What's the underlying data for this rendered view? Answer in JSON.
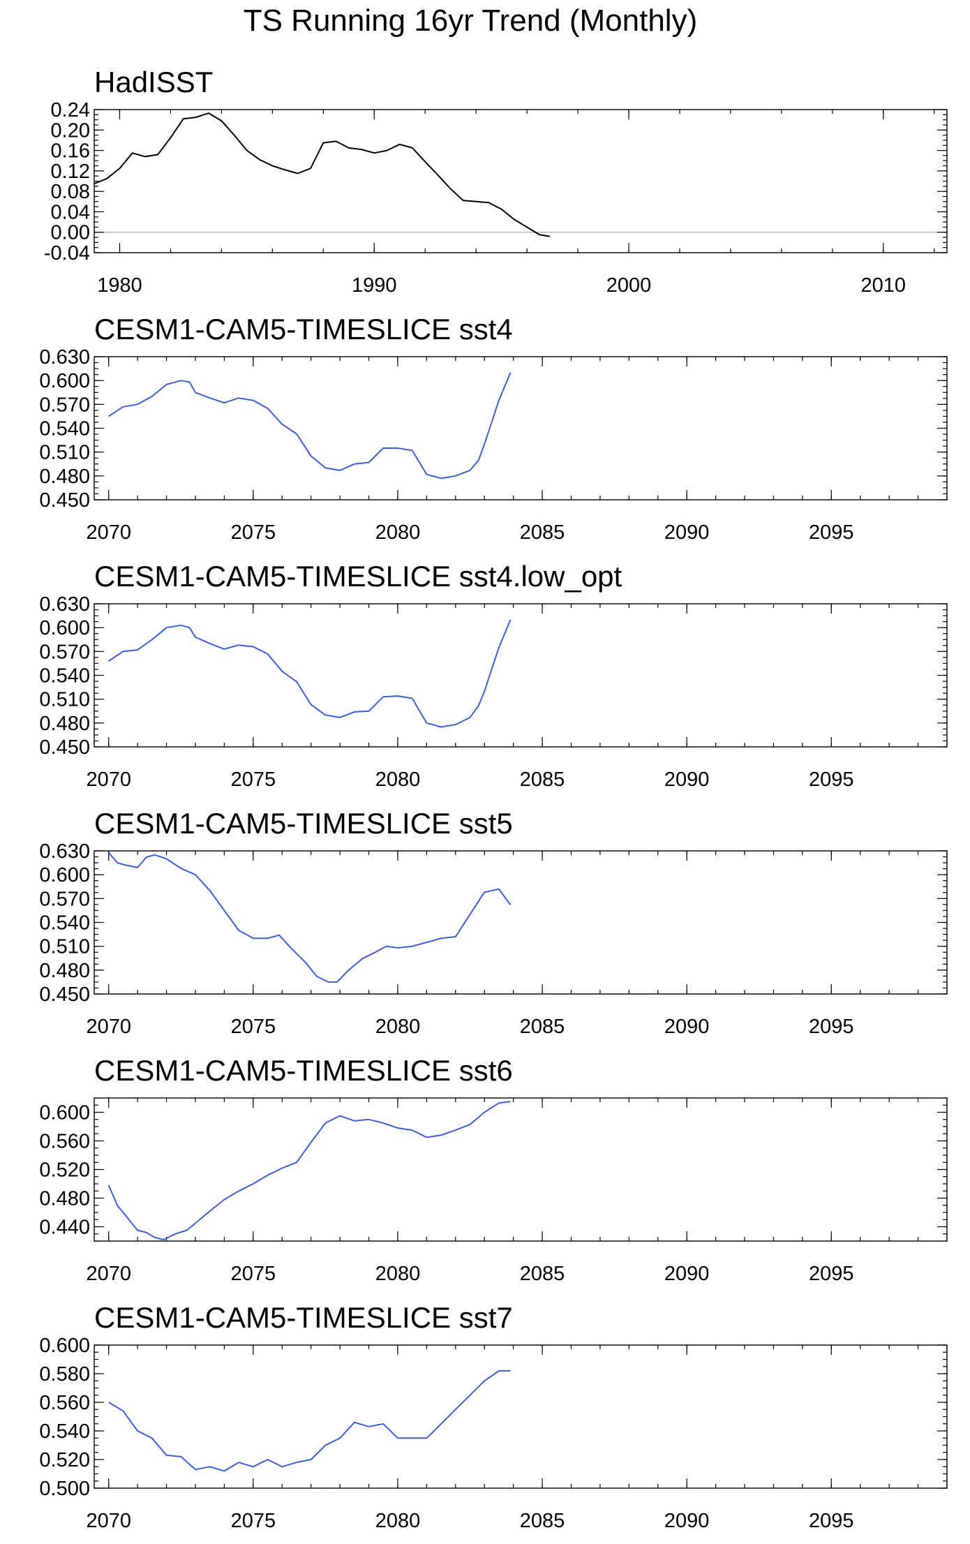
{
  "figure": {
    "title": "TS Running 16yr Trend (Monthly)"
  },
  "chart_data": [
    {
      "type": "line",
      "title": "HadISST",
      "xlabel": "",
      "ylabel": "",
      "xlim": [
        1979,
        2012.5
      ],
      "ylim": [
        -0.04,
        0.24
      ],
      "xticks": [
        1980,
        1990,
        2000,
        2010
      ],
      "yticks": [
        -0.04,
        0.0,
        0.04,
        0.08,
        0.12,
        0.16,
        0.2,
        0.24
      ],
      "ytick_labels": [
        "-0.04",
        "0.00",
        "0.04",
        "0.08",
        "0.12",
        "0.16",
        "0.20",
        "0.24"
      ],
      "xtick_labels": [
        "1980",
        "1990",
        "2000",
        "2010"
      ],
      "zero_line": true,
      "series": [
        {
          "color": "#000000",
          "x": [
            1979.0,
            1979.5,
            1980.0,
            1980.5,
            1981.0,
            1981.5,
            1982.0,
            1982.5,
            1983.0,
            1983.5,
            1984.0,
            1984.5,
            1985.0,
            1985.5,
            1986.0,
            1986.5,
            1987.0,
            1987.5,
            1988.0,
            1988.5,
            1989.0,
            1989.5,
            1990.0,
            1990.5,
            1991.0,
            1991.5,
            1992.0,
            1992.5,
            1993.0,
            1993.5,
            1994.0,
            1994.5,
            1995.0,
            1995.5,
            1996.0,
            1996.5,
            1996.9
          ],
          "y": [
            0.095,
            0.105,
            0.125,
            0.155,
            0.148,
            0.152,
            0.185,
            0.222,
            0.225,
            0.233,
            0.218,
            0.19,
            0.16,
            0.142,
            0.13,
            0.122,
            0.115,
            0.125,
            0.175,
            0.178,
            0.165,
            0.162,
            0.155,
            0.16,
            0.172,
            0.165,
            0.138,
            0.112,
            0.085,
            0.062,
            0.06,
            0.058,
            0.045,
            0.025,
            0.01,
            -0.005,
            -0.008
          ]
        }
      ]
    },
    {
      "type": "line",
      "title": "CESM1-CAM5-TIMESLICE sst4",
      "xlabel": "",
      "ylabel": "",
      "xlim": [
        2069.5,
        2099
      ],
      "ylim": [
        0.45,
        0.63
      ],
      "xticks": [
        2070,
        2075,
        2080,
        2085,
        2090,
        2095
      ],
      "yticks": [
        0.45,
        0.48,
        0.51,
        0.54,
        0.57,
        0.6,
        0.63
      ],
      "ytick_labels": [
        "0.450",
        "0.480",
        "0.510",
        "0.540",
        "0.570",
        "0.600",
        "0.630"
      ],
      "xtick_labels": [
        "2070",
        "2075",
        "2080",
        "2085",
        "2090",
        "2095"
      ],
      "zero_line": false,
      "series": [
        {
          "color": "#3a5fd9",
          "x": [
            2070.0,
            2070.5,
            2071.0,
            2071.5,
            2072.0,
            2072.5,
            2072.8,
            2073.0,
            2073.5,
            2074.0,
            2074.5,
            2075.0,
            2075.5,
            2076.0,
            2076.5,
            2077.0,
            2077.5,
            2078.0,
            2078.5,
            2079.0,
            2079.5,
            2080.0,
            2080.5,
            2081.0,
            2081.5,
            2082.0,
            2082.5,
            2082.8,
            2083.0,
            2083.5,
            2083.9
          ],
          "y": [
            0.555,
            0.567,
            0.57,
            0.58,
            0.595,
            0.6,
            0.598,
            0.585,
            0.578,
            0.572,
            0.578,
            0.575,
            0.565,
            0.545,
            0.533,
            0.505,
            0.49,
            0.487,
            0.495,
            0.497,
            0.515,
            0.515,
            0.512,
            0.482,
            0.477,
            0.48,
            0.487,
            0.5,
            0.52,
            0.575,
            0.61
          ]
        }
      ]
    },
    {
      "type": "line",
      "title": "CESM1-CAM5-TIMESLICE sst4.low_opt",
      "xlabel": "",
      "ylabel": "",
      "xlim": [
        2069.5,
        2099
      ],
      "ylim": [
        0.45,
        0.63
      ],
      "xticks": [
        2070,
        2075,
        2080,
        2085,
        2090,
        2095
      ],
      "yticks": [
        0.45,
        0.48,
        0.51,
        0.54,
        0.57,
        0.6,
        0.63
      ],
      "ytick_labels": [
        "0.450",
        "0.480",
        "0.510",
        "0.540",
        "0.570",
        "0.600",
        "0.630"
      ],
      "xtick_labels": [
        "2070",
        "2075",
        "2080",
        "2085",
        "2090",
        "2095"
      ],
      "zero_line": false,
      "series": [
        {
          "color": "#3a5fd9",
          "x": [
            2070.0,
            2070.5,
            2071.0,
            2071.5,
            2072.0,
            2072.5,
            2072.8,
            2073.0,
            2073.5,
            2074.0,
            2074.5,
            2075.0,
            2075.5,
            2076.0,
            2076.5,
            2077.0,
            2077.5,
            2078.0,
            2078.5,
            2079.0,
            2079.5,
            2080.0,
            2080.5,
            2081.0,
            2081.5,
            2082.0,
            2082.5,
            2082.8,
            2083.0,
            2083.5,
            2083.9
          ],
          "y": [
            0.558,
            0.57,
            0.572,
            0.585,
            0.6,
            0.603,
            0.6,
            0.588,
            0.58,
            0.573,
            0.578,
            0.576,
            0.567,
            0.545,
            0.532,
            0.503,
            0.49,
            0.487,
            0.494,
            0.495,
            0.513,
            0.514,
            0.511,
            0.48,
            0.475,
            0.478,
            0.487,
            0.502,
            0.52,
            0.575,
            0.61
          ]
        }
      ]
    },
    {
      "type": "line",
      "title": "CESM1-CAM5-TIMESLICE sst5",
      "xlabel": "",
      "ylabel": "",
      "xlim": [
        2069.5,
        2099
      ],
      "ylim": [
        0.45,
        0.63
      ],
      "xticks": [
        2070,
        2075,
        2080,
        2085,
        2090,
        2095
      ],
      "yticks": [
        0.45,
        0.48,
        0.51,
        0.54,
        0.57,
        0.6,
        0.63
      ],
      "ytick_labels": [
        "0.450",
        "0.480",
        "0.510",
        "0.540",
        "0.570",
        "0.600",
        "0.630"
      ],
      "xtick_labels": [
        "2070",
        "2075",
        "2080",
        "2085",
        "2090",
        "2095"
      ],
      "zero_line": false,
      "series": [
        {
          "color": "#3a5fd9",
          "x": [
            2070.0,
            2070.3,
            2070.6,
            2071.0,
            2071.3,
            2071.6,
            2072.0,
            2072.5,
            2073.0,
            2073.5,
            2074.0,
            2074.5,
            2075.0,
            2075.5,
            2075.9,
            2076.3,
            2076.8,
            2077.2,
            2077.6,
            2077.9,
            2078.3,
            2078.8,
            2079.2,
            2079.6,
            2080.0,
            2080.5,
            2081.0,
            2081.5,
            2082.0,
            2082.5,
            2083.0,
            2083.5,
            2083.9
          ],
          "y": [
            0.628,
            0.615,
            0.612,
            0.609,
            0.622,
            0.625,
            0.62,
            0.608,
            0.6,
            0.58,
            0.555,
            0.53,
            0.52,
            0.52,
            0.524,
            0.508,
            0.49,
            0.472,
            0.465,
            0.465,
            0.48,
            0.495,
            0.502,
            0.51,
            0.508,
            0.51,
            0.515,
            0.52,
            0.522,
            0.55,
            0.578,
            0.582,
            0.562
          ]
        }
      ]
    },
    {
      "type": "line",
      "title": "CESM1-CAM5-TIMESLICE sst6",
      "xlabel": "",
      "ylabel": "",
      "xlim": [
        2069.5,
        2099
      ],
      "ylim": [
        0.42,
        0.62
      ],
      "xticks": [
        2070,
        2075,
        2080,
        2085,
        2090,
        2095
      ],
      "yticks": [
        0.44,
        0.48,
        0.52,
        0.56,
        0.6
      ],
      "ytick_labels": [
        "0.440",
        "0.480",
        "0.520",
        "0.560",
        "0.600"
      ],
      "xtick_labels": [
        "2070",
        "2075",
        "2080",
        "2085",
        "2090",
        "2095"
      ],
      "zero_line": false,
      "series": [
        {
          "color": "#3a5fd9",
          "x": [
            2070.0,
            2070.3,
            2070.6,
            2071.0,
            2071.3,
            2071.6,
            2071.9,
            2072.3,
            2072.7,
            2073.0,
            2073.5,
            2074.0,
            2074.5,
            2075.0,
            2075.5,
            2076.0,
            2076.5,
            2077.0,
            2077.5,
            2078.0,
            2078.5,
            2079.0,
            2079.5,
            2080.0,
            2080.5,
            2081.0,
            2081.5,
            2082.0,
            2082.5,
            2083.0,
            2083.5,
            2083.9
          ],
          "y": [
            0.498,
            0.47,
            0.455,
            0.435,
            0.432,
            0.425,
            0.422,
            0.43,
            0.435,
            0.445,
            0.462,
            0.478,
            0.49,
            0.5,
            0.512,
            0.522,
            0.53,
            0.558,
            0.585,
            0.595,
            0.588,
            0.59,
            0.585,
            0.578,
            0.575,
            0.565,
            0.568,
            0.575,
            0.583,
            0.6,
            0.613,
            0.615
          ]
        }
      ]
    },
    {
      "type": "line",
      "title": "CESM1-CAM5-TIMESLICE sst7",
      "xlabel": "",
      "ylabel": "",
      "xlim": [
        2069.5,
        2099
      ],
      "ylim": [
        0.5,
        0.6
      ],
      "xticks": [
        2070,
        2075,
        2080,
        2085,
        2090,
        2095
      ],
      "yticks": [
        0.5,
        0.52,
        0.54,
        0.56,
        0.58,
        0.6
      ],
      "ytick_labels": [
        "0.500",
        "0.520",
        "0.540",
        "0.560",
        "0.580",
        "0.600"
      ],
      "xtick_labels": [
        "2070",
        "2075",
        "2080",
        "2085",
        "2090",
        "2095"
      ],
      "zero_line": false,
      "series": [
        {
          "color": "#3a5fd9",
          "x": [
            2070.0,
            2070.5,
            2071.0,
            2071.5,
            2072.0,
            2072.5,
            2073.0,
            2073.5,
            2074.0,
            2074.5,
            2075.0,
            2075.5,
            2076.0,
            2076.5,
            2077.0,
            2077.5,
            2078.0,
            2078.5,
            2079.0,
            2079.5,
            2080.0,
            2080.5,
            2081.0,
            2081.5,
            2082.0,
            2082.5,
            2083.0,
            2083.5,
            2083.9
          ],
          "y": [
            0.56,
            0.554,
            0.54,
            0.535,
            0.523,
            0.522,
            0.513,
            0.515,
            0.512,
            0.518,
            0.515,
            0.52,
            0.515,
            0.518,
            0.52,
            0.53,
            0.535,
            0.546,
            0.543,
            0.545,
            0.535,
            0.535,
            0.535,
            0.545,
            0.555,
            0.565,
            0.575,
            0.582,
            0.582
          ]
        }
      ]
    }
  ]
}
